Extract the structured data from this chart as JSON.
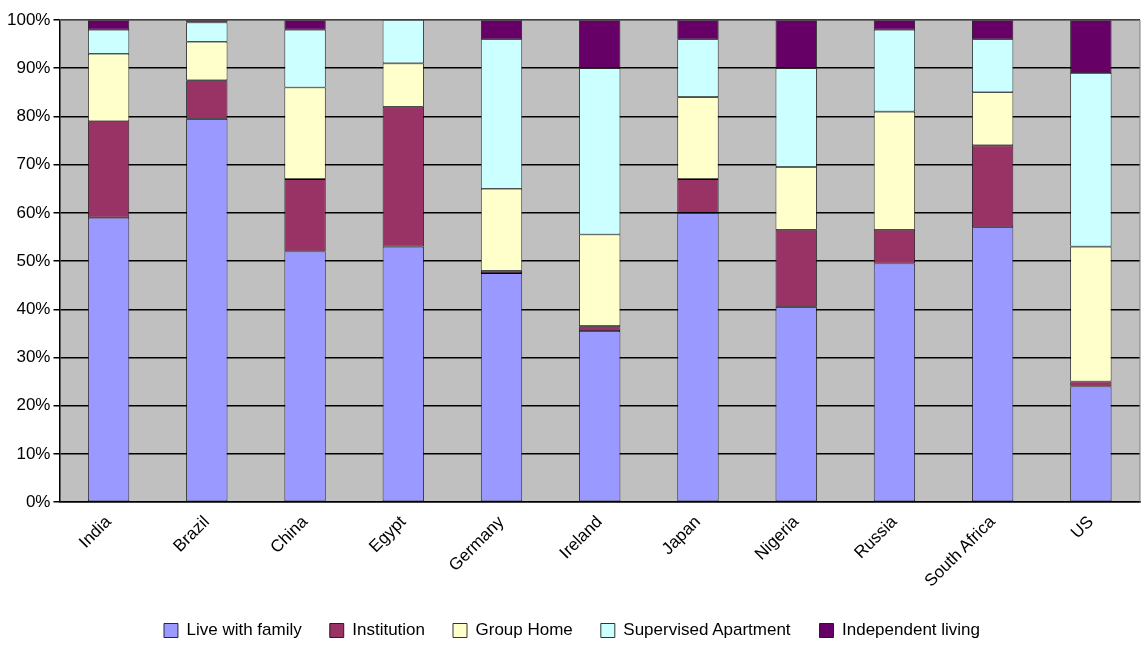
{
  "chart_data": {
    "type": "bar",
    "stacked": true,
    "categories": [
      "India",
      "Brazil",
      "China",
      "Egypt",
      "Germany",
      "Ireland",
      "Japan",
      "Nigeria",
      "Russia",
      "South Africa",
      "US"
    ],
    "series": [
      {
        "name": "Live with family",
        "color": "#9999ff",
        "values": [
          59,
          79.5,
          52,
          53,
          47.5,
          35.5,
          60,
          40.5,
          49.5,
          57,
          24
        ]
      },
      {
        "name": "Institution",
        "color": "#993366",
        "values": [
          20,
          8,
          15,
          29,
          0.5,
          1,
          7,
          16,
          7,
          17,
          1
        ]
      },
      {
        "name": "Group Home",
        "color": "#ffffcc",
        "values": [
          14,
          8,
          19,
          9,
          17,
          19,
          17,
          13,
          24.5,
          11,
          28
        ]
      },
      {
        "name": "Supervised Apartment",
        "color": "#ccffff",
        "values": [
          5,
          4,
          12,
          9,
          31,
          34.5,
          12,
          20.5,
          17,
          11,
          36
        ]
      },
      {
        "name": "Independent living",
        "color": "#660066",
        "values": [
          2,
          0.5,
          2,
          0,
          4,
          10,
          4,
          10,
          2,
          4,
          11
        ]
      }
    ],
    "ylim": [
      0,
      100
    ],
    "yticks": [
      {
        "value": 0,
        "label": "0%"
      },
      {
        "value": 10,
        "label": "10%"
      },
      {
        "value": 20,
        "label": "20%"
      },
      {
        "value": 30,
        "label": "30%"
      },
      {
        "value": 40,
        "label": "40%"
      },
      {
        "value": 50,
        "label": "50%"
      },
      {
        "value": 60,
        "label": "60%"
      },
      {
        "value": 70,
        "label": "70%"
      },
      {
        "value": 80,
        "label": "80%"
      },
      {
        "value": 90,
        "label": "90%"
      },
      {
        "value": 100,
        "label": "100%"
      }
    ],
    "grid": "y",
    "legend": "bottom"
  }
}
